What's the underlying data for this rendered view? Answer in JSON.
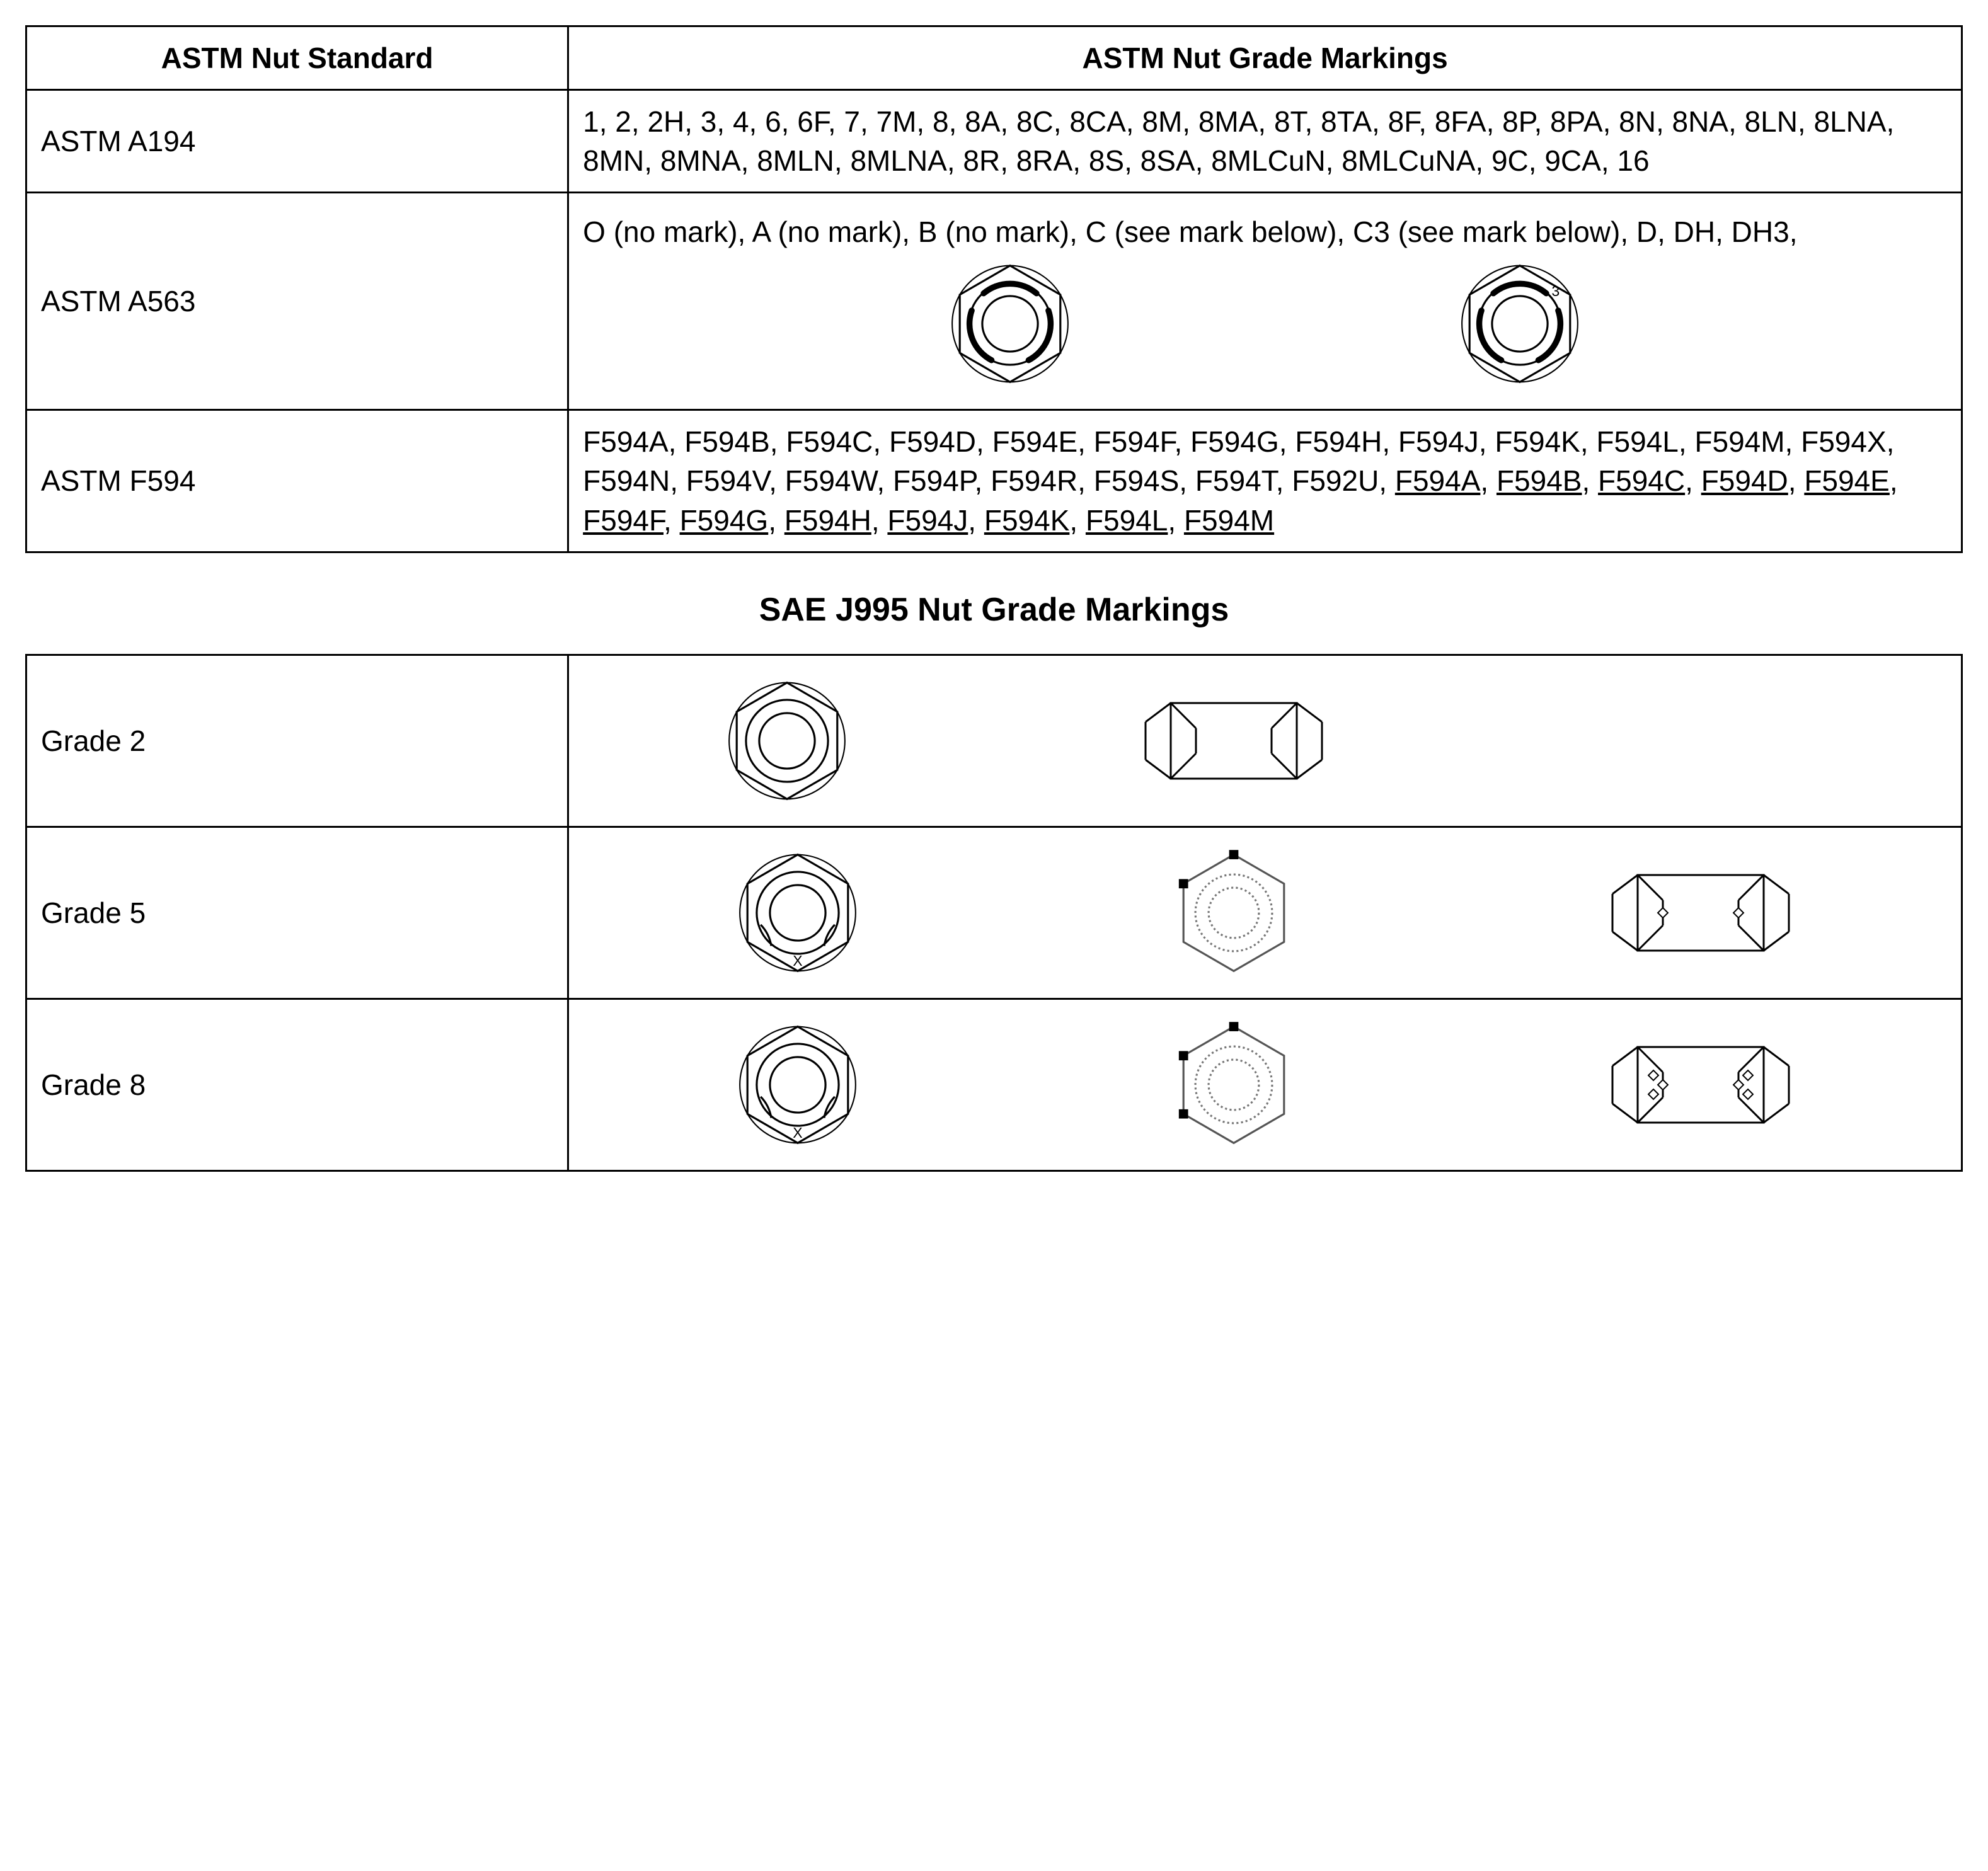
{
  "table1": {
    "headers": {
      "std": "ASTM Nut Standard",
      "mark": "ASTM Nut Grade Markings"
    },
    "rows": [
      {
        "std": "ASTM A194",
        "mark": "1, 2, 2H, 3, 4, 6, 6F, 7, 7M, 8, 8A, 8C, 8CA, 8M, 8MA, 8T, 8TA, 8F, 8FA, 8P, 8PA, 8N, 8NA, 8LN, 8LNA, 8MN, 8MNA, 8MLN, 8MLNA, 8R, 8RA, 8S, 8SA, 8MLCuN, 8MLCuNA, 9C, 9CA, 16"
      },
      {
        "std": "ASTM A563",
        "mark_text": "O (no mark), A (no mark), B (no mark), C (see mark below), C3 (see mark below), D, DH, DH3,",
        "nut_c_label": "",
        "nut_c3_label": "3"
      },
      {
        "std": "ASTM F594",
        "mark_plain": "F594A, F594B, F594C, F594D, F594E, F594F, F594G, F594H, F594J, F594K, F594L, F594M, F594X, F594N, F594V, F594W, F594P, F594R, F594S, F594T, F592U, ",
        "mark_under": [
          "F594A",
          "F594B",
          "F594C",
          "F594D",
          "F594E",
          "F594F",
          "F594G",
          "F594H",
          "F594J",
          "F594K",
          "F594L",
          "F594M"
        ]
      }
    ]
  },
  "heading2": "SAE J995 Nut Grade Markings",
  "table2": {
    "rows": [
      {
        "grade": "Grade 2",
        "top_label": "",
        "side_marks": 0,
        "dots": 0
      },
      {
        "grade": "Grade 5",
        "top_label": "X",
        "side_marks": 1,
        "dots": 1
      },
      {
        "grade": "Grade 8",
        "top_label": "X",
        "side_marks": 2,
        "dots": 2
      }
    ]
  },
  "style": {
    "border_color": "#000000",
    "bg_color": "#ffffff",
    "text_color": "#000000",
    "font_size_body": 46,
    "font_size_heading": 52,
    "line_stroke": "#000000",
    "line_width": 3,
    "arc_width": 7,
    "nut_size": 220,
    "side_nut_w": 320,
    "side_nut_h": 160
  }
}
